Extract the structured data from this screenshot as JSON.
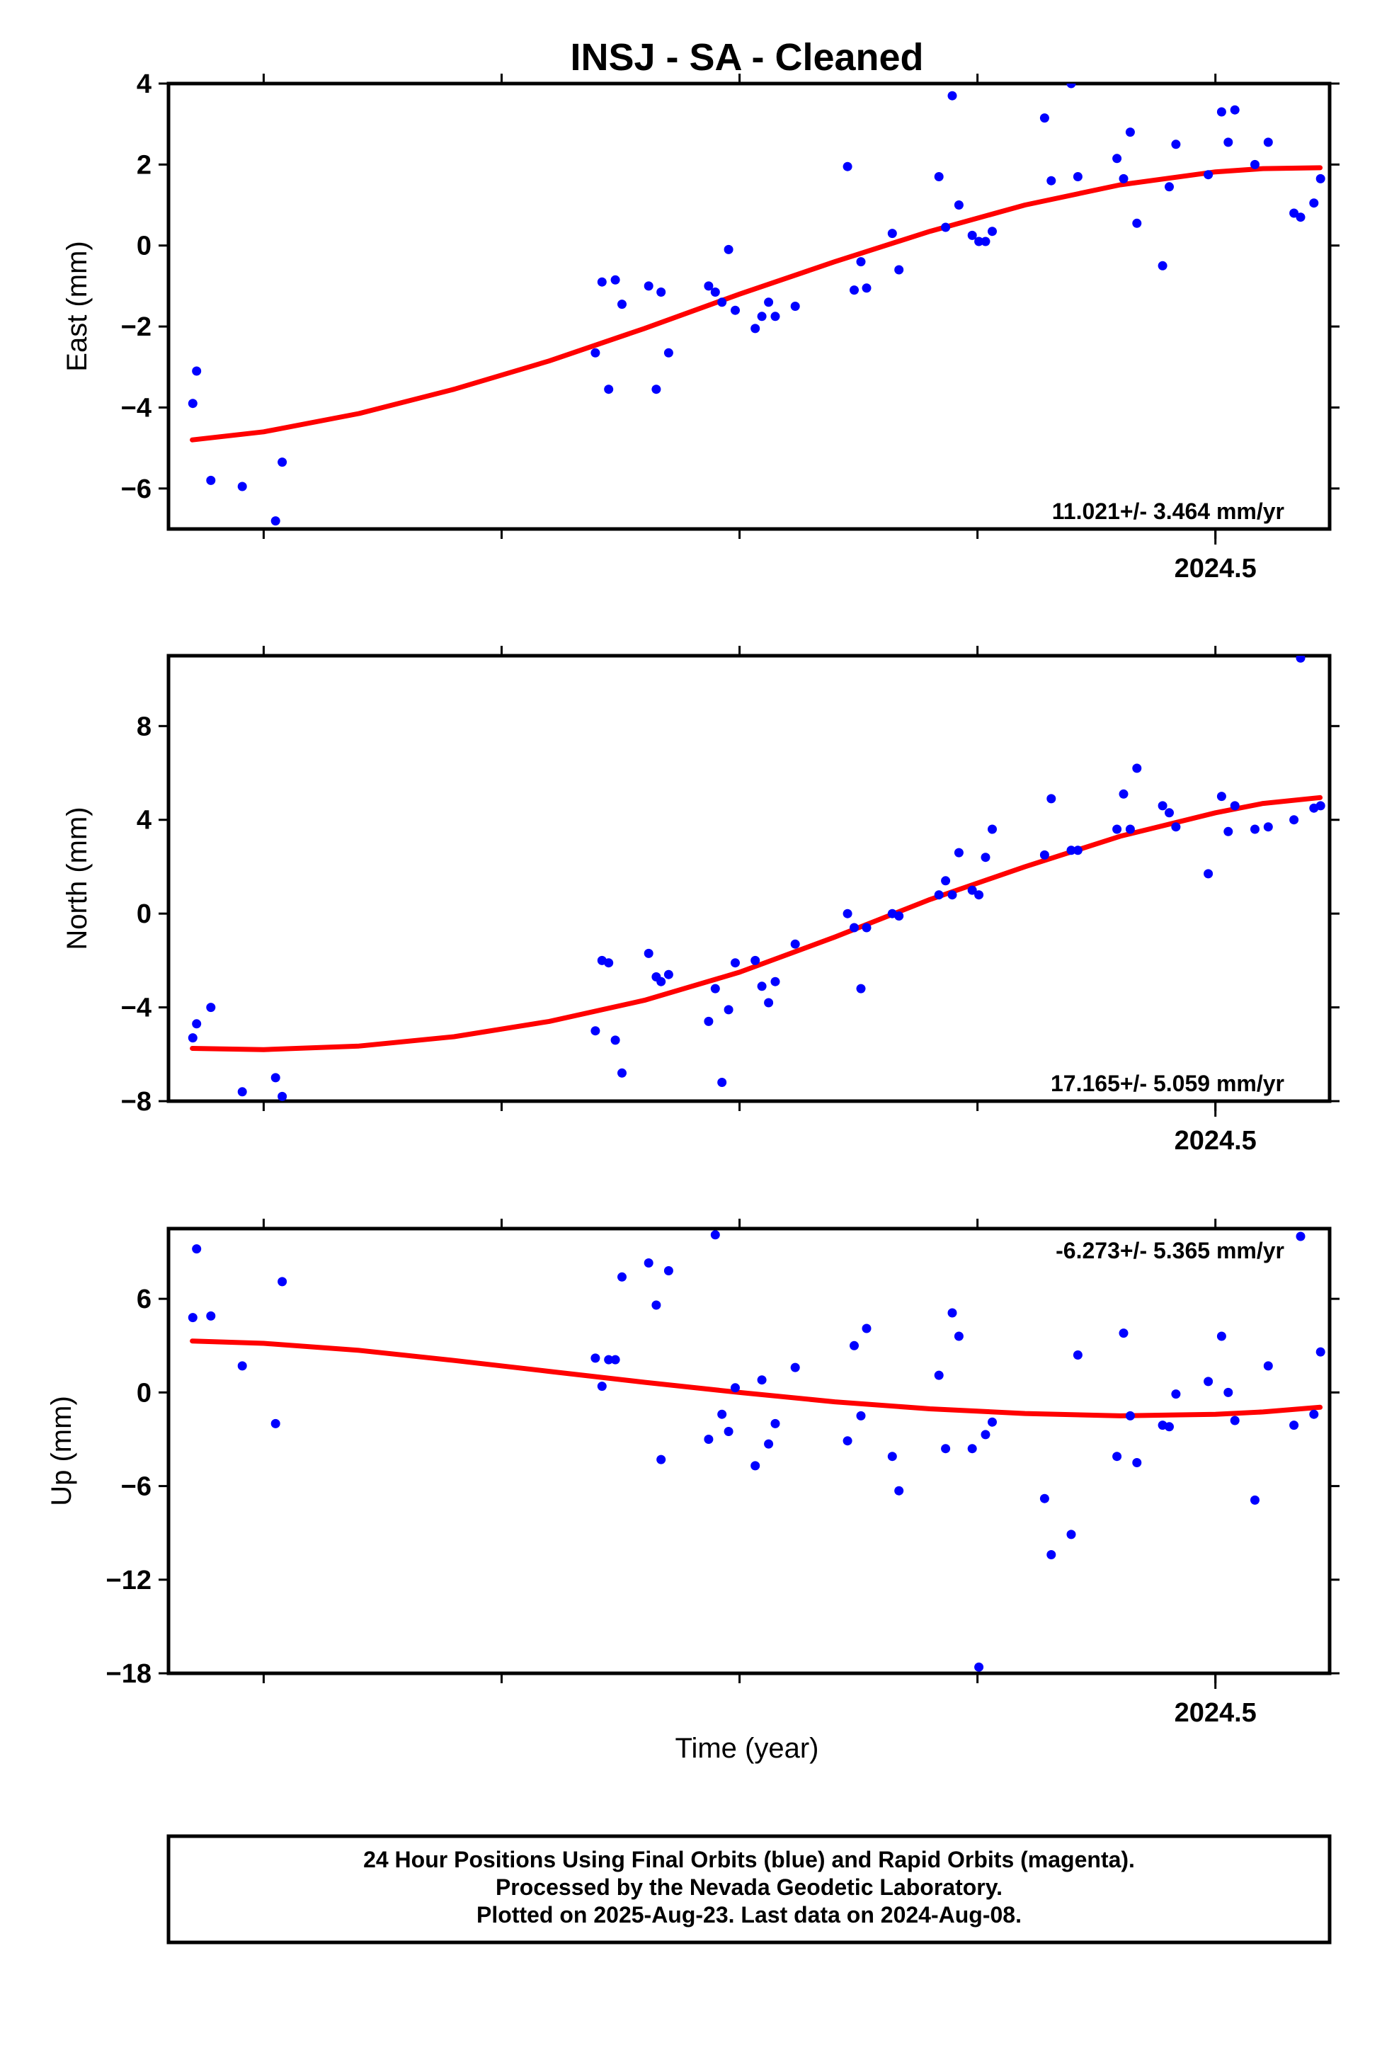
{
  "chart_data": {
    "title": "INSJ  - SA - Cleaned",
    "xlabel": "Time (year)",
    "x_tick_label": "2024.5",
    "xlim": [
      2023.4,
      2024.62
    ],
    "panels": [
      {
        "type": "scatter",
        "ylabel": "East (mm)",
        "ylim": [
          -7,
          4
        ],
        "yticks": [
          -6,
          -4,
          -2,
          0,
          2,
          4
        ],
        "rate_text": "11.021+/- 3.464 mm/yr",
        "points": [
          [
            2023.4255,
            -3.9
          ],
          [
            2023.4295,
            -3.1
          ],
          [
            2023.4445,
            -5.8
          ],
          [
            2023.4775,
            -5.95
          ],
          [
            2023.5125,
            -6.8
          ],
          [
            2023.5195,
            -5.35
          ],
          [
            2023.8485,
            -2.65
          ],
          [
            2023.8555,
            -0.9
          ],
          [
            2023.8625,
            -3.55
          ],
          [
            2023.8695,
            -0.85
          ],
          [
            2023.8765,
            -1.45
          ],
          [
            2023.9045,
            -1.0
          ],
          [
            2023.9125,
            -3.55
          ],
          [
            2023.9175,
            -1.15
          ],
          [
            2023.9255,
            -2.65
          ],
          [
            2023.9675,
            -1.0
          ],
          [
            2023.9745,
            -1.15
          ],
          [
            2023.9815,
            -1.4
          ],
          [
            2023.9885,
            -0.1
          ],
          [
            2023.9955,
            -1.6
          ],
          [
            2024.0165,
            -2.05
          ],
          [
            2024.0235,
            -1.75
          ],
          [
            2024.0305,
            -1.4
          ],
          [
            2024.0375,
            -1.75
          ],
          [
            2024.0585,
            -1.5
          ],
          [
            2024.1135,
            1.95
          ],
          [
            2024.1205,
            -1.1
          ],
          [
            2024.1275,
            -0.4
          ],
          [
            2024.1335,
            -1.05
          ],
          [
            2024.1605,
            0.3
          ],
          [
            2024.1675,
            -0.6
          ],
          [
            2024.2095,
            1.7
          ],
          [
            2024.2165,
            0.45
          ],
          [
            2024.2235,
            3.7
          ],
          [
            2024.2305,
            1.0
          ],
          [
            2024.2445,
            0.25
          ],
          [
            2024.2515,
            0.1
          ],
          [
            2024.2585,
            0.1
          ],
          [
            2024.2655,
            0.35
          ],
          [
            2024.3205,
            3.15
          ],
          [
            2024.3275,
            1.6
          ],
          [
            2024.3485,
            4.0
          ],
          [
            2024.3555,
            1.7
          ],
          [
            2024.3965,
            2.15
          ],
          [
            2024.4035,
            1.65
          ],
          [
            2024.4105,
            2.8
          ],
          [
            2024.4175,
            0.55
          ],
          [
            2024.4445,
            -0.5
          ],
          [
            2024.4515,
            1.45
          ],
          [
            2024.4585,
            2.5
          ],
          [
            2024.4925,
            1.75
          ],
          [
            2024.5065,
            3.3
          ],
          [
            2024.5135,
            2.55
          ],
          [
            2024.5205,
            3.35
          ],
          [
            2024.5415,
            2.0
          ],
          [
            2024.5555,
            2.55
          ],
          [
            2024.5825,
            0.8
          ],
          [
            2024.5895,
            0.7
          ],
          [
            2024.6035,
            1.05
          ],
          [
            2024.6105,
            1.65
          ]
        ],
        "fit": [
          [
            2023.425,
            -4.8
          ],
          [
            2023.5,
            -4.6
          ],
          [
            2023.6,
            -4.15
          ],
          [
            2023.7,
            -3.55
          ],
          [
            2023.8,
            -2.85
          ],
          [
            2023.9,
            -2.05
          ],
          [
            2024.0,
            -1.2
          ],
          [
            2024.1,
            -0.4
          ],
          [
            2024.2,
            0.35
          ],
          [
            2024.3,
            1.0
          ],
          [
            2024.4,
            1.5
          ],
          [
            2024.5,
            1.82
          ],
          [
            2024.55,
            1.9
          ],
          [
            2024.61,
            1.92
          ]
        ]
      },
      {
        "type": "scatter",
        "ylabel": "North (mm)",
        "ylim": [
          -8,
          11
        ],
        "yticks": [
          -8,
          -4,
          0,
          4,
          8
        ],
        "rate_text": "17.165+/- 5.059 mm/yr",
        "points": [
          [
            2023.4255,
            -5.3
          ],
          [
            2023.4295,
            -4.7
          ],
          [
            2023.4445,
            -4.0
          ],
          [
            2023.4775,
            -7.6
          ],
          [
            2023.5125,
            -7.0
          ],
          [
            2023.5195,
            -7.8
          ],
          [
            2023.8485,
            -5.0
          ],
          [
            2023.8555,
            -2.0
          ],
          [
            2023.8625,
            -2.1
          ],
          [
            2023.8695,
            -5.4
          ],
          [
            2023.8765,
            -6.8
          ],
          [
            2023.9045,
            -1.7
          ],
          [
            2023.9125,
            -2.7
          ],
          [
            2023.9175,
            -2.9
          ],
          [
            2023.9255,
            -2.6
          ],
          [
            2023.9675,
            -4.6
          ],
          [
            2023.9745,
            -3.2
          ],
          [
            2023.9815,
            -7.2
          ],
          [
            2023.9885,
            -4.1
          ],
          [
            2023.9955,
            -2.1
          ],
          [
            2024.0165,
            -2.0
          ],
          [
            2024.0235,
            -3.1
          ],
          [
            2024.0305,
            -3.8
          ],
          [
            2024.0375,
            -2.9
          ],
          [
            2024.0585,
            -1.3
          ],
          [
            2024.1135,
            0.0
          ],
          [
            2024.1205,
            -0.6
          ],
          [
            2024.1275,
            -3.2
          ],
          [
            2024.1335,
            -0.6
          ],
          [
            2024.1605,
            0.0
          ],
          [
            2024.1675,
            -0.1
          ],
          [
            2024.2095,
            0.8
          ],
          [
            2024.2165,
            1.4
          ],
          [
            2024.2235,
            0.8
          ],
          [
            2024.2305,
            2.6
          ],
          [
            2024.2445,
            1.0
          ],
          [
            2024.2515,
            0.8
          ],
          [
            2024.2585,
            2.4
          ],
          [
            2024.2655,
            3.6
          ],
          [
            2024.3205,
            2.5
          ],
          [
            2024.3275,
            4.9
          ],
          [
            2024.3485,
            2.7
          ],
          [
            2024.3555,
            2.7
          ],
          [
            2024.3965,
            3.6
          ],
          [
            2024.4035,
            5.1
          ],
          [
            2024.4105,
            3.6
          ],
          [
            2024.4175,
            6.2
          ],
          [
            2024.4445,
            4.6
          ],
          [
            2024.4515,
            4.3
          ],
          [
            2024.4585,
            3.7
          ],
          [
            2024.4925,
            1.7
          ],
          [
            2024.5065,
            5.0
          ],
          [
            2024.5135,
            3.5
          ],
          [
            2024.5205,
            4.6
          ],
          [
            2024.5415,
            3.6
          ],
          [
            2024.5555,
            3.7
          ],
          [
            2024.5825,
            4.0
          ],
          [
            2024.5895,
            10.9
          ],
          [
            2024.6035,
            4.5
          ],
          [
            2024.6105,
            4.6
          ]
        ],
        "fit": [
          [
            2023.425,
            -5.75
          ],
          [
            2023.5,
            -5.8
          ],
          [
            2023.6,
            -5.65
          ],
          [
            2023.7,
            -5.25
          ],
          [
            2023.8,
            -4.6
          ],
          [
            2023.9,
            -3.7
          ],
          [
            2024.0,
            -2.5
          ],
          [
            2024.1,
            -1.0
          ],
          [
            2024.2,
            0.6
          ],
          [
            2024.3,
            2.0
          ],
          [
            2024.4,
            3.3
          ],
          [
            2024.5,
            4.3
          ],
          [
            2024.55,
            4.7
          ],
          [
            2024.61,
            4.95
          ]
        ]
      },
      {
        "type": "scatter",
        "ylabel": "Up (mm)",
        "ylim": [
          -18,
          10.5
        ],
        "yticks": [
          -18,
          -12,
          -6,
          0,
          6
        ],
        "rate_text": "-6.273+/- 5.365 mm/yr",
        "points": [
          [
            2023.4255,
            4.8
          ],
          [
            2023.4295,
            9.2
          ],
          [
            2023.4445,
            4.9
          ],
          [
            2023.4775,
            1.7
          ],
          [
            2023.5125,
            -2.0
          ],
          [
            2023.5195,
            7.1
          ],
          [
            2023.8485,
            2.2
          ],
          [
            2023.8555,
            0.4
          ],
          [
            2023.8625,
            2.1
          ],
          [
            2023.8695,
            2.1
          ],
          [
            2023.8765,
            7.4
          ],
          [
            2023.9045,
            8.3
          ],
          [
            2023.9125,
            5.6
          ],
          [
            2023.9175,
            -4.3
          ],
          [
            2023.9255,
            7.8
          ],
          [
            2023.9675,
            -3.0
          ],
          [
            2023.9745,
            10.1
          ],
          [
            2023.9815,
            -1.4
          ],
          [
            2023.9885,
            -2.5
          ],
          [
            2023.9955,
            0.3
          ],
          [
            2024.0165,
            -4.7
          ],
          [
            2024.0235,
            0.8
          ],
          [
            2024.0305,
            -3.3
          ],
          [
            2024.0375,
            -2.0
          ],
          [
            2024.0585,
            1.6
          ],
          [
            2024.1135,
            -3.1
          ],
          [
            2024.1205,
            3.0
          ],
          [
            2024.1275,
            -1.5
          ],
          [
            2024.1335,
            4.1
          ],
          [
            2024.1605,
            -4.1
          ],
          [
            2024.1675,
            -6.3
          ],
          [
            2024.2095,
            1.1
          ],
          [
            2024.2165,
            -3.6
          ],
          [
            2024.2235,
            5.1
          ],
          [
            2024.2305,
            3.6
          ],
          [
            2024.2445,
            -3.6
          ],
          [
            2024.2515,
            -17.6
          ],
          [
            2024.2585,
            -2.7
          ],
          [
            2024.2655,
            -1.9
          ],
          [
            2024.3205,
            -6.8
          ],
          [
            2024.3275,
            -10.4
          ],
          [
            2024.3485,
            -9.1
          ],
          [
            2024.3555,
            2.4
          ],
          [
            2024.3965,
            -4.1
          ],
          [
            2024.4035,
            3.8
          ],
          [
            2024.4105,
            -1.5
          ],
          [
            2024.4175,
            -4.5
          ],
          [
            2024.4445,
            -2.1
          ],
          [
            2024.4515,
            -2.2
          ],
          [
            2024.4585,
            -0.1
          ],
          [
            2024.4925,
            0.7
          ],
          [
            2024.5065,
            3.6
          ],
          [
            2024.5135,
            0.0
          ],
          [
            2024.5205,
            -1.8
          ],
          [
            2024.5415,
            -6.9
          ],
          [
            2024.5555,
            1.7
          ],
          [
            2024.5825,
            -2.1
          ],
          [
            2024.5895,
            10.0
          ],
          [
            2024.6035,
            -1.4
          ],
          [
            2024.6105,
            2.6
          ]
        ],
        "fit": [
          [
            2023.425,
            3.3
          ],
          [
            2023.5,
            3.15
          ],
          [
            2023.6,
            2.7
          ],
          [
            2023.7,
            2.05
          ],
          [
            2023.8,
            1.35
          ],
          [
            2023.9,
            0.65
          ],
          [
            2024.0,
            0.0
          ],
          [
            2024.1,
            -0.6
          ],
          [
            2024.2,
            -1.05
          ],
          [
            2024.3,
            -1.35
          ],
          [
            2024.4,
            -1.5
          ],
          [
            2024.5,
            -1.4
          ],
          [
            2024.55,
            -1.25
          ],
          [
            2024.61,
            -0.95
          ]
        ]
      }
    ],
    "footer": [
      "24 Hour Positions Using Final Orbits (blue) and Rapid Orbits (magenta).",
      "Processed by the Nevada Geodetic Laboratory.",
      "Plotted on 2025-Aug-23. Last data on 2024-Aug-08."
    ],
    "colors": {
      "points": "#0000ff",
      "fit": "#ff0000",
      "frame": "#000000"
    }
  }
}
